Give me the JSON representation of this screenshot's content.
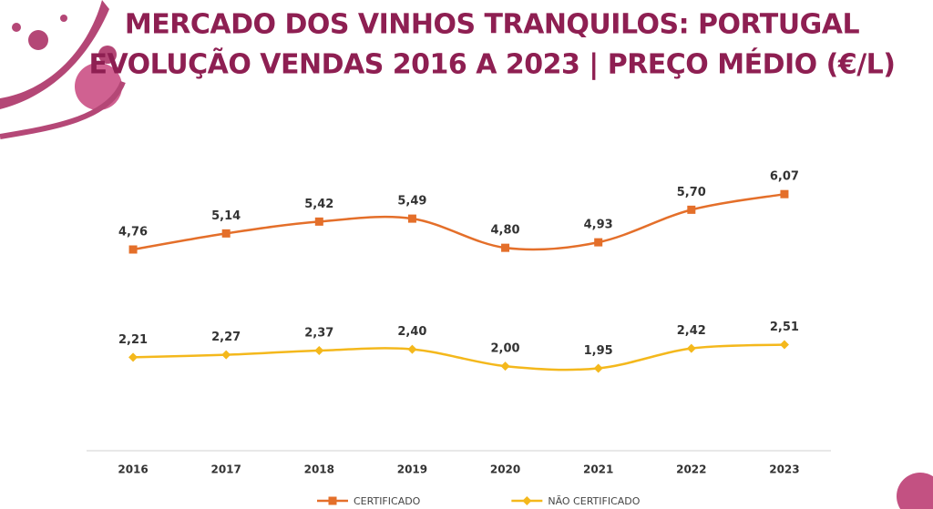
{
  "chart_data": {
    "type": "line",
    "title": "MERCADO DOS VINHOS TRANQUILOS: PORTUGAL",
    "subtitle": "EVOLUÇÃO VENDAS 2016 A 2023 | PREÇO MÉDIO (€/L)",
    "categories": [
      "2016",
      "2017",
      "2018",
      "2019",
      "2020",
      "2021",
      "2022",
      "2023"
    ],
    "series": [
      {
        "name": "CERTIFICADO",
        "color": "#e46f2a",
        "marker": "square",
        "values": [
          4.76,
          5.14,
          5.42,
          5.49,
          4.8,
          4.93,
          5.7,
          6.07
        ],
        "value_labels": [
          "4,76",
          "5,14",
          "5,42",
          "5,49",
          "4,80",
          "4,93",
          "5,70",
          "6,07"
        ]
      },
      {
        "name": "NÃO CERTIFICADO",
        "color": "#f4b81c",
        "marker": "diamond",
        "values": [
          2.21,
          2.27,
          2.37,
          2.4,
          2.0,
          1.95,
          2.42,
          2.51
        ],
        "value_labels": [
          "2,21",
          "2,27",
          "2,37",
          "2,40",
          "2,00",
          "1,95",
          "2,42",
          "2,51"
        ]
      }
    ],
    "ylim": [
      0,
      7
    ],
    "legend": "bottom"
  }
}
